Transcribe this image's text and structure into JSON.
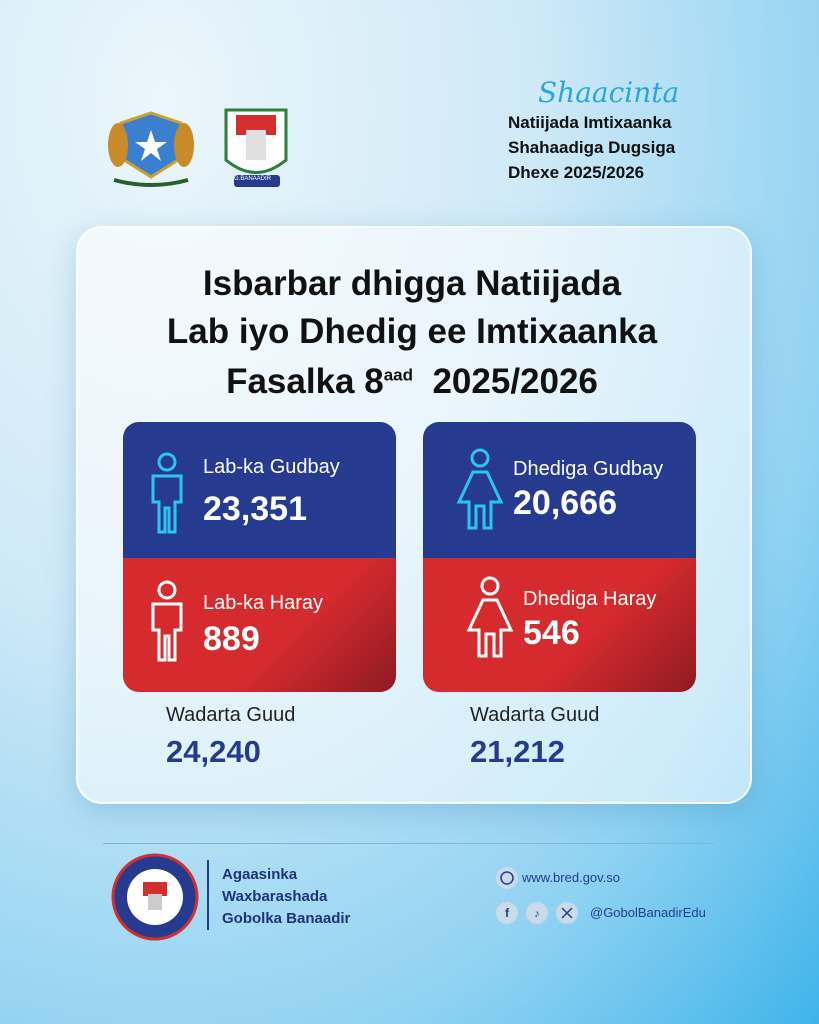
{
  "header": {
    "script_word": "Shaacinta",
    "lines": [
      "Natiijada Imtixaanka",
      "Shahaadiga Dugsiga",
      "Dhexe 2025/2026"
    ],
    "logo_label": "G.BANAADIR"
  },
  "title": {
    "line1": "Isbarbar dhigga Natiijada",
    "line2": "Lab iyo Dhedig ee Imtixaanka",
    "line3": "Fasalka 8",
    "superscript": "aad",
    "year": "2025/2026"
  },
  "cards": [
    {
      "passed_label": "Lab-ka Gudbay",
      "passed": "23,351",
      "failed_label": "Lab-ka Haray",
      "failed": "889",
      "total_label": "Wadarta Guud",
      "total": "24,240"
    },
    {
      "passed_label": "Dhediga Gudbay",
      "passed": "20,666",
      "failed_label": "Dhediga Haray",
      "failed": "546",
      "total_label": "Wadarta Guud",
      "total": "21,212"
    }
  ],
  "footer": {
    "org_lines": [
      "Agaasinka",
      "Waxbarashada",
      "Gobolka Banaadir"
    ],
    "website": "www.bred.gov.so",
    "handle": "@GobolBanadirEdu"
  }
}
